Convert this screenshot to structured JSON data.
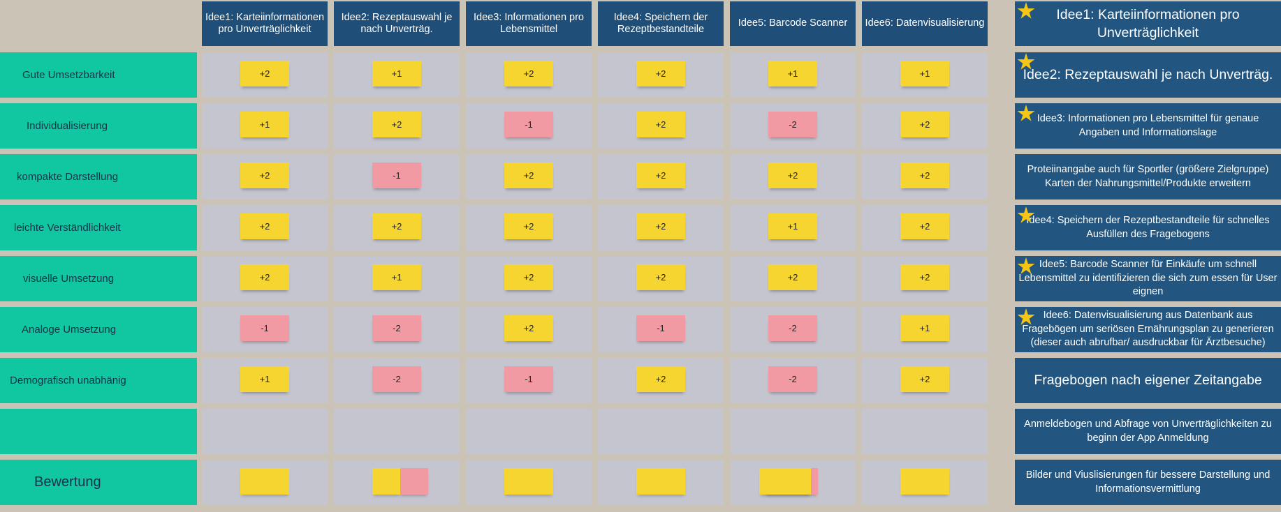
{
  "columns": [
    {
      "label": "Idee1: Karteiinformationen pro Unverträglichkeit"
    },
    {
      "label": "Idee2: Rezeptauswahl je nach Unverträg."
    },
    {
      "label": "Idee3: Informationen pro Lebensmittel"
    },
    {
      "label": "Idee4: Speichern der Rezeptbestandteile"
    },
    {
      "label": "Idee5: Barcode Scanner"
    },
    {
      "label": "Idee6: Datenvisualisierung"
    }
  ],
  "rows": [
    {
      "label": "Gute Umsetzbarkeit",
      "scores": [
        "+2",
        "+1",
        "+2",
        "+2",
        "+1",
        "+1"
      ]
    },
    {
      "label": "Individualisierung",
      "scores": [
        "+1",
        "+2",
        "-1",
        "+2",
        "-2",
        "+2"
      ]
    },
    {
      "label": "kompakte Darstellung",
      "scores": [
        "+2",
        "-1",
        "+2",
        "+2",
        "+2",
        "+2"
      ]
    },
    {
      "label": "leichte Verständlichkeit",
      "scores": [
        "+2",
        "+2",
        "+2",
        "+2",
        "+1",
        "+2"
      ]
    },
    {
      "label": "visuelle Umsetzung",
      "scores": [
        "+2",
        "+1",
        "+2",
        "+2",
        "+2",
        "+2"
      ]
    },
    {
      "label": "Analoge Umsetzung",
      "scores": [
        "-1",
        "-2",
        "+2",
        "-1",
        "-2",
        "+1"
      ]
    },
    {
      "label": "Demografisch unabhänig",
      "scores": [
        "+1",
        "-2",
        "-1",
        "+2",
        "-2",
        "+2"
      ]
    },
    {
      "label": "",
      "scores": [
        "",
        "",
        "",
        "",
        "",
        ""
      ]
    },
    {
      "label": "Bewertung",
      "scores": [
        "",
        "",
        "",
        "",
        "",
        ""
      ]
    }
  ],
  "right_panel": [
    {
      "text": "Idee1: Karteiinformationen pro Unverträglichkeit",
      "starred": true
    },
    {
      "text": "Idee2: Rezeptauswahl je nach Unverträg.",
      "starred": true
    },
    {
      "text": "Idee3: Informationen pro Lebensmittel für genaue Angaben und Informationslage",
      "starred": true
    },
    {
      "text": "Proteiinangabe auch für Sportler (größere Zielgruppe) Karten der Nahrungsmittel/Produkte erweitern",
      "starred": false
    },
    {
      "text": "Idee4: Speichern der Rezeptbestandteile für schnelles Ausfüllen des Fragebogens",
      "starred": true
    },
    {
      "text": "Idee5: Barcode Scanner für Einkäufe um schnell Lebensmittel zu identifizieren die sich zum essen für User eignen",
      "starred": true
    },
    {
      "text": "Idee6: Datenvisualisierung aus Datenbank aus Fragebögen um seriösen Ernährungsplan zu generieren (dieser auch abrufbar/ ausdruckbar für Ärztbesuche)",
      "starred": true
    },
    {
      "text": "Fragebogen nach eigener Zeitangabe",
      "starred": false
    },
    {
      "text": "Anmeldebogen und Abfrage von Unverträglichkeiten zu beginn der App Anmeldung",
      "starred": false
    },
    {
      "text": "Bilder und Viuslisierungen für bessere Darstellung und Informationsvermittlung",
      "starred": false
    }
  ],
  "colors": {
    "background": "#cbc3b6",
    "column_header": "#1f4e79",
    "row_label": "#10c7a1",
    "cell": "#c5c5d0",
    "note_positive": "#f7d530",
    "note_negative": "#f19aa4",
    "right_panel": "#22557f",
    "star": "#f5c518"
  }
}
